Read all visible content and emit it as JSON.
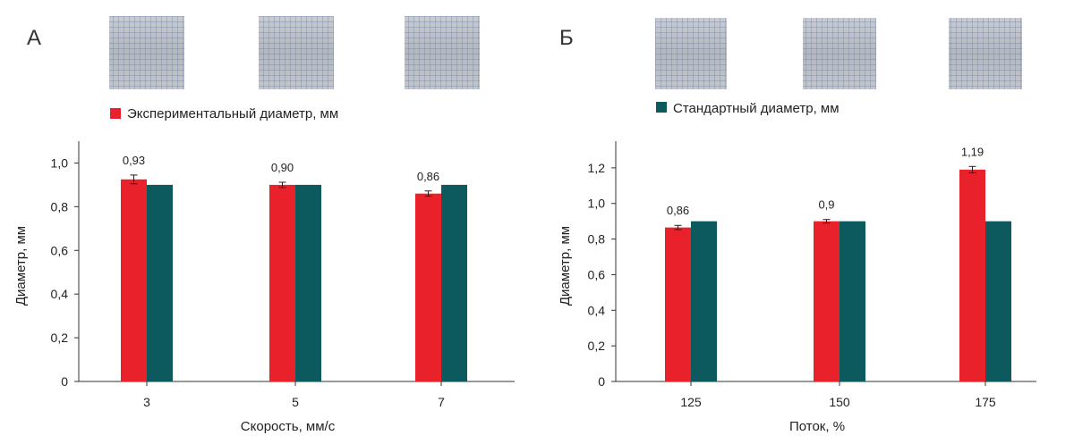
{
  "legend": {
    "experimental": "Экспериментальный диаметр, мм",
    "standard": "Стандартный диаметр, мм"
  },
  "colors": {
    "experimental": "#e8212b",
    "standard": "#0c5a5e",
    "axis": "#333333",
    "swatch_grid": "#3f5f8a"
  },
  "chart_data": [
    {
      "panel_label": "А",
      "type": "bar",
      "categories": [
        "3",
        "5",
        "7"
      ],
      "xlabel": "Скорость, мм/с",
      "ylabel": "Диаметр, мм",
      "ylim": [
        0,
        1.1
      ],
      "yticks": [
        0,
        0.2,
        0.4,
        0.6,
        0.8,
        1.0
      ],
      "ytick_labels": [
        "0",
        "0,2",
        "0,4",
        "0,6",
        "0,8",
        "1,0"
      ],
      "series": [
        {
          "key": "experimental",
          "values": [
            0.925,
            0.9,
            0.86
          ],
          "errors": [
            0.02,
            0.012,
            0.012
          ],
          "data_labels": [
            "0,93",
            "0,90",
            "0,86"
          ]
        },
        {
          "key": "standard",
          "values": [
            0.9,
            0.9,
            0.9
          ]
        }
      ],
      "legend_position": "top-left",
      "grid": false
    },
    {
      "panel_label": "Б",
      "type": "bar",
      "categories": [
        "125",
        "150",
        "175"
      ],
      "xlabel": "Поток, %",
      "ylabel": "Диаметр, мм",
      "ylim": [
        0,
        1.35
      ],
      "yticks": [
        0,
        0.2,
        0.4,
        0.6,
        0.8,
        1.0,
        1.2
      ],
      "ytick_labels": [
        "0",
        "0,2",
        "0,4",
        "0,6",
        "0,8",
        "1,0",
        "1,2"
      ],
      "series": [
        {
          "key": "experimental",
          "values": [
            0.865,
            0.9,
            1.19
          ],
          "errors": [
            0.012,
            0.01,
            0.018
          ],
          "data_labels": [
            "0,86",
            "0,9",
            "1,19"
          ]
        },
        {
          "key": "standard",
          "values": [
            0.9,
            0.9,
            0.9
          ]
        }
      ],
      "legend_position": "top-right",
      "grid": false
    }
  ]
}
